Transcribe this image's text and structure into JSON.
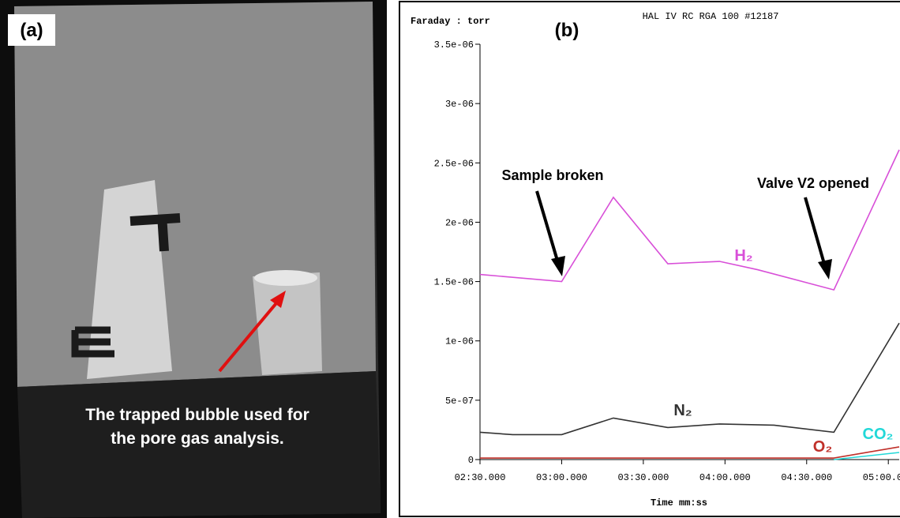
{
  "panel_a": {
    "label": "(a)",
    "caption": [
      "The trapped bubble used for",
      "the pore gas analysis."
    ]
  },
  "chart_data": {
    "type": "line",
    "panel_label": "(b)",
    "title": "HAL IV RC RGA 100 #12187",
    "y_label": "Faraday : torr",
    "x_label": "Time   mm:ss",
    "annotations": [
      "Sample broken",
      "Valve V2 opened"
    ],
    "xlim": [
      150,
      304
    ],
    "ylim": [
      0,
      3.5e-06
    ],
    "xticks": [
      {
        "value": 150,
        "label": "02:30.000"
      },
      {
        "value": 180,
        "label": "03:00.000"
      },
      {
        "value": 210,
        "label": "03:30.000"
      },
      {
        "value": 240,
        "label": "04:00.000"
      },
      {
        "value": 270,
        "label": "04:30.000"
      },
      {
        "value": 300,
        "label": "05:00.000"
      }
    ],
    "yticks": [
      0,
      {
        "value": 5e-07,
        "label": "5e-07"
      },
      {
        "value": 1e-06,
        "label": "1e-06"
      },
      {
        "value": 1.5e-06,
        "label": "1.5e-06"
      },
      {
        "value": 2e-06,
        "label": "2e-06"
      },
      {
        "value": 2.5e-06,
        "label": "2.5e-06"
      },
      {
        "value": 3e-06,
        "label": "3e-06"
      },
      {
        "value": 3.5e-06,
        "label": "3.5e-06"
      }
    ],
    "series": [
      {
        "name": "H₂",
        "color": "#d84fd8",
        "x": [
          150,
          180,
          199,
          219,
          238,
          252,
          280,
          304
        ],
        "values": [
          1.56e-06,
          1.5e-06,
          2.21e-06,
          1.65e-06,
          1.67e-06,
          1.6e-06,
          1.43e-06,
          2.61e-06
        ]
      },
      {
        "name": "N₂",
        "color": "#333333",
        "x": [
          150,
          162,
          180,
          199,
          219,
          238,
          258,
          280,
          304
        ],
        "values": [
          2.3e-07,
          2.1e-07,
          2.1e-07,
          3.5e-07,
          2.7e-07,
          3e-07,
          2.9e-07,
          2.3e-07,
          1.15e-06
        ]
      },
      {
        "name": "O₂",
        "color": "#c0302a",
        "x": [
          150,
          280,
          304
        ],
        "values": [
          1.3e-08,
          1.3e-08,
          1.07e-07
        ]
      },
      {
        "name": "CO₂",
        "color": "#22d8d8",
        "x": [
          280,
          304
        ],
        "values": [
          0,
          6e-08
        ]
      }
    ]
  }
}
